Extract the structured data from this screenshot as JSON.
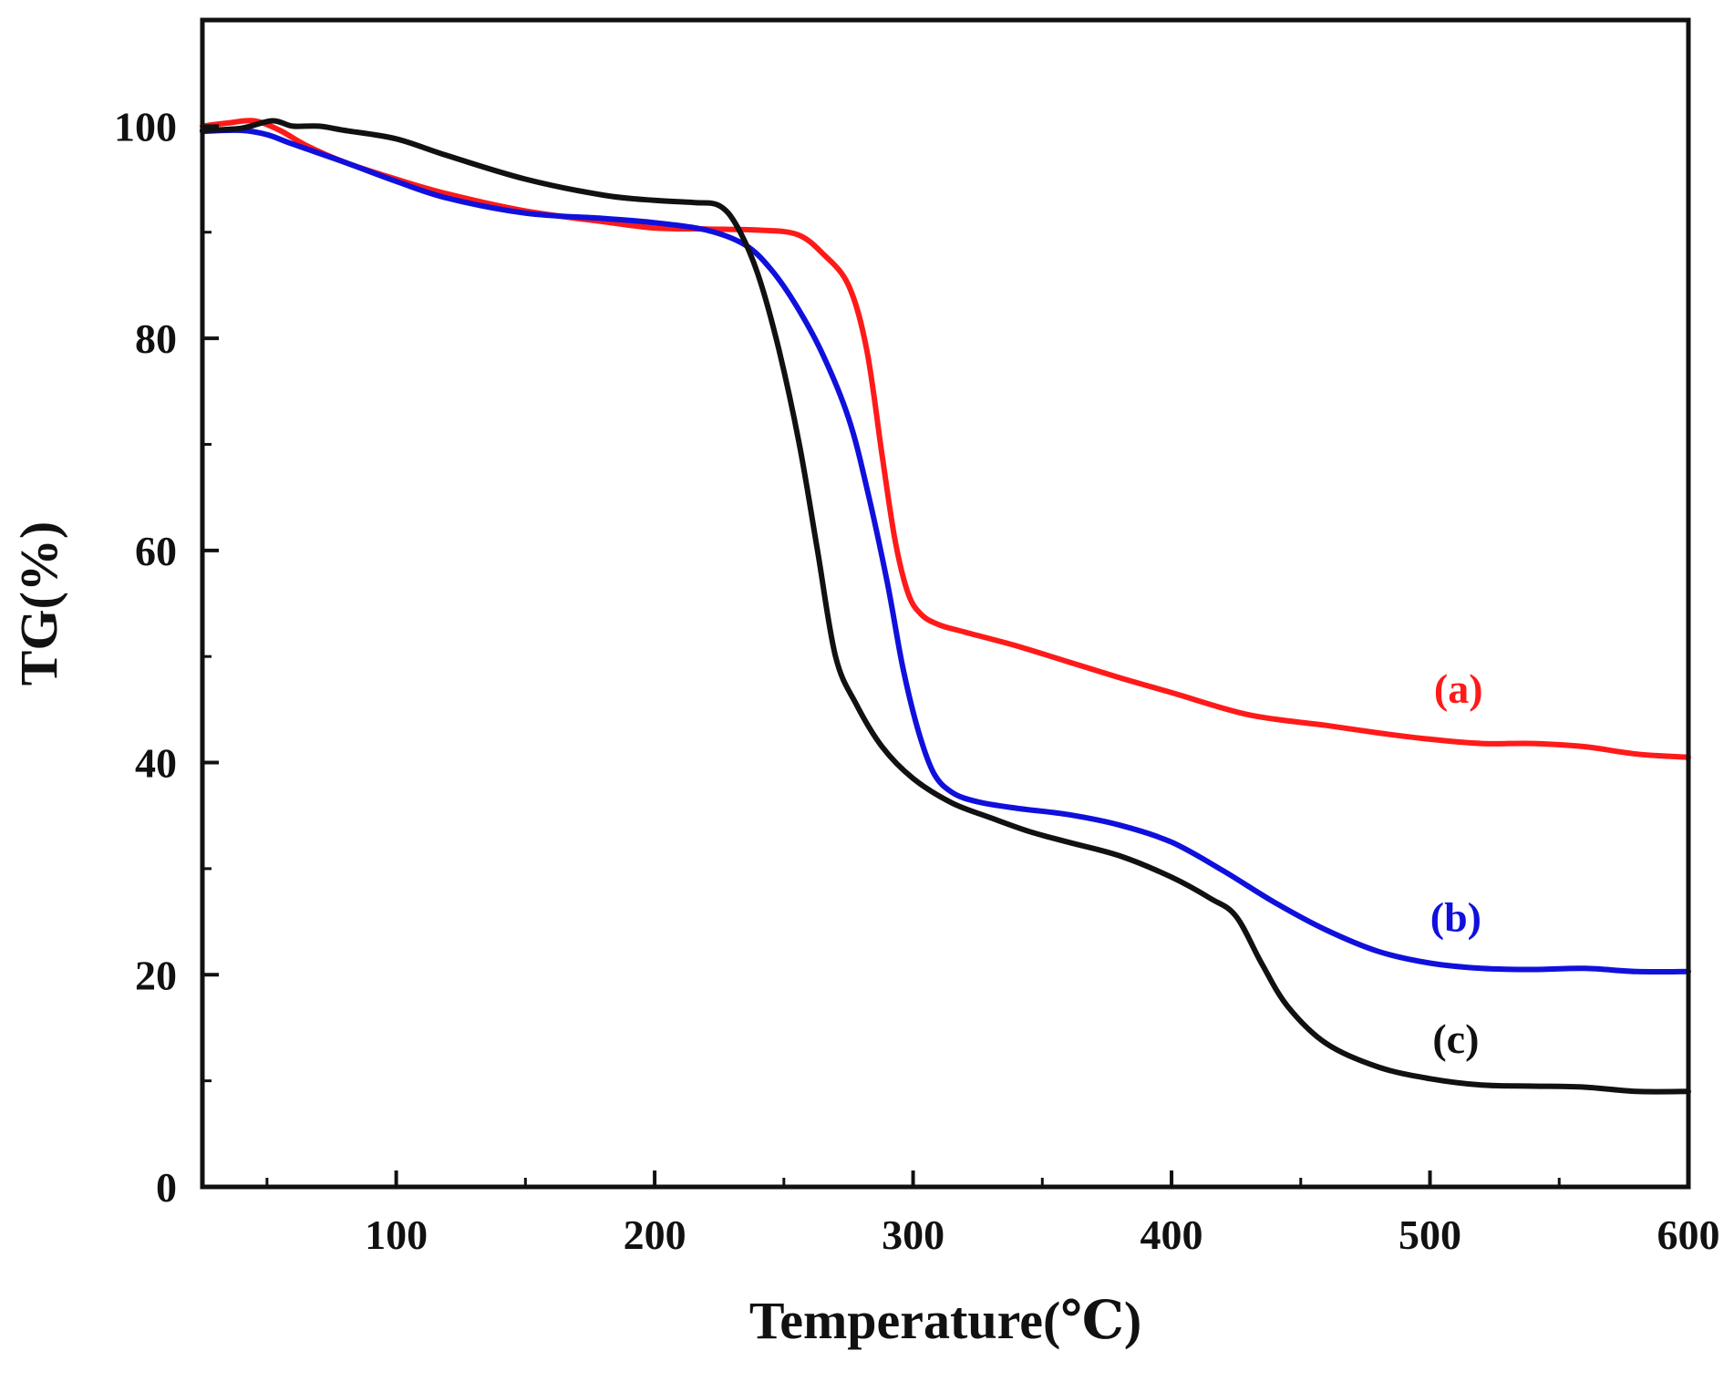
{
  "chart_data": {
    "type": "line",
    "title": "",
    "xlabel": "Temperature(℃)",
    "ylabel": "TG(%)",
    "xlim": [
      25,
      600
    ],
    "ylim": [
      0,
      110
    ],
    "x_ticks": [
      100,
      200,
      300,
      400,
      500,
      600
    ],
    "y_ticks": [
      0,
      20,
      40,
      60,
      80,
      100
    ],
    "x_tick_labels": [
      "100",
      "200",
      "300",
      "400",
      "500",
      "600"
    ],
    "y_tick_labels": [
      "0",
      "20",
      "40",
      "60",
      "80",
      "100"
    ],
    "grid": false,
    "legend": "none",
    "series": [
      {
        "name": "(a)",
        "color": "#ff1a1a",
        "label_at": [
          511,
          47
        ],
        "x": [
          25,
          35,
          45,
          55,
          65,
          80,
          100,
          120,
          150,
          180,
          200,
          220,
          240,
          255,
          265,
          275,
          282,
          288,
          293,
          298,
          303,
          310,
          320,
          340,
          360,
          380,
          400,
          430,
          460,
          480,
          500,
          520,
          540,
          560,
          580,
          600
        ],
        "y": [
          100,
          100.3,
          100.5,
          99.6,
          98.2,
          96.6,
          95,
          93.6,
          92,
          91,
          90.4,
          90.3,
          90.2,
          89.8,
          88,
          85,
          79,
          69,
          61,
          56,
          54,
          53,
          52.3,
          51,
          49.5,
          48,
          46.6,
          44.5,
          43.5,
          42.8,
          42.2,
          41.8,
          41.8,
          41.5,
          40.8,
          40.5
        ]
      },
      {
        "name": "(b)",
        "color": "#1010dd",
        "label_at": [
          510,
          25.5
        ],
        "x": [
          25,
          40,
          50,
          60,
          80,
          100,
          120,
          150,
          180,
          200,
          220,
          235,
          245,
          255,
          265,
          275,
          282,
          290,
          296,
          302,
          308,
          315,
          325,
          340,
          360,
          380,
          400,
          420,
          440,
          460,
          480,
          500,
          520,
          540,
          560,
          580,
          600
        ],
        "y": [
          99.5,
          99.6,
          99.2,
          98.3,
          96.6,
          94.8,
          93.2,
          91.8,
          91.3,
          90.9,
          90.2,
          88.8,
          86.5,
          83,
          78.5,
          72.5,
          66,
          57,
          49,
          43,
          39,
          37.2,
          36.3,
          35.7,
          35.1,
          34.1,
          32.5,
          29.8,
          26.8,
          24.2,
          22.2,
          21.1,
          20.6,
          20.5,
          20.6,
          20.3,
          20.3
        ]
      },
      {
        "name": "(c)",
        "color": "#111111",
        "label_at": [
          510,
          14
        ],
        "x": [
          25,
          40,
          52,
          60,
          70,
          80,
          100,
          120,
          150,
          180,
          200,
          215,
          225,
          232,
          240,
          248,
          256,
          263,
          270,
          278,
          288,
          300,
          315,
          330,
          345,
          360,
          380,
          400,
          415,
          425,
          435,
          445,
          460,
          480,
          500,
          520,
          540,
          560,
          580,
          600
        ],
        "y": [
          99.6,
          99.8,
          100.5,
          100,
          100,
          99.6,
          98.8,
          97.2,
          95,
          93.5,
          93,
          92.8,
          92.5,
          90.5,
          86,
          79,
          70,
          60,
          50,
          45.5,
          41.5,
          38.5,
          36.2,
          34.8,
          33.5,
          32.5,
          31.2,
          29.2,
          27.2,
          25.5,
          21,
          17,
          13.5,
          11.3,
          10.2,
          9.6,
          9.5,
          9.4,
          9.0,
          9.0
        ]
      }
    ]
  }
}
